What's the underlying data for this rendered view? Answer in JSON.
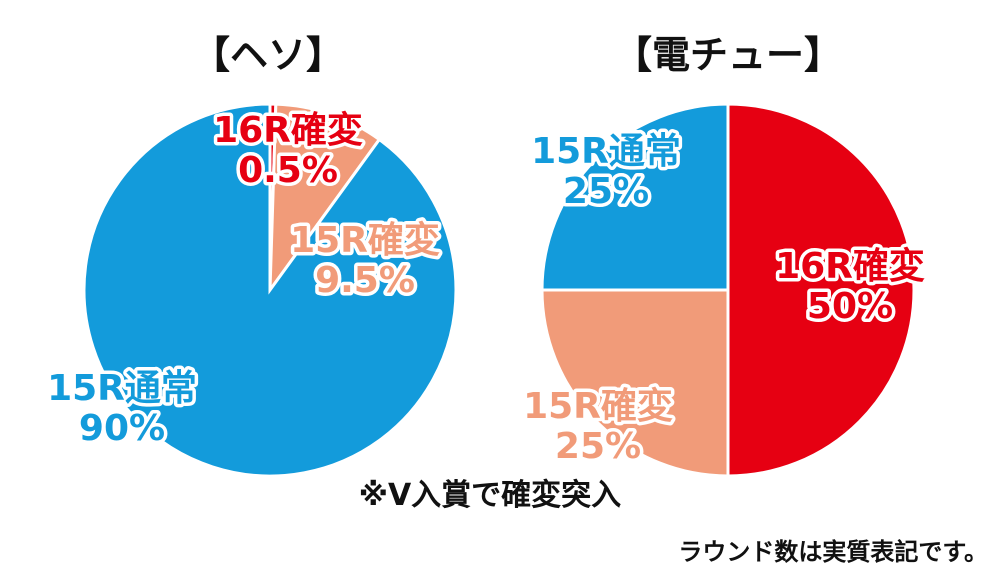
{
  "chart_data": [
    {
      "type": "pie",
      "title": "【ヘソ】",
      "slices": [
        {
          "label": "16R確変",
          "value_text": "0.5%",
          "value": 0.5,
          "color": "#e60012"
        },
        {
          "label": "15R確変",
          "value_text": "9.5%",
          "value": 9.5,
          "color": "#f19b79"
        },
        {
          "label": "15R通常",
          "value_text": "90%",
          "value": 90,
          "color": "#139bdb"
        }
      ]
    },
    {
      "type": "pie",
      "title": "【電チュー】",
      "slices": [
        {
          "label": "16R確変",
          "value_text": "50%",
          "value": 50,
          "color": "#e60012"
        },
        {
          "label": "15R確変",
          "value_text": "25%",
          "value": 25,
          "color": "#f19b79"
        },
        {
          "label": "15R通常",
          "value_text": "25%",
          "value": 25,
          "color": "#139bdb"
        }
      ]
    }
  ],
  "notes": {
    "v_entry": "※V入賞で確変突入",
    "round_note": "ラウンド数は実質表記です。"
  }
}
